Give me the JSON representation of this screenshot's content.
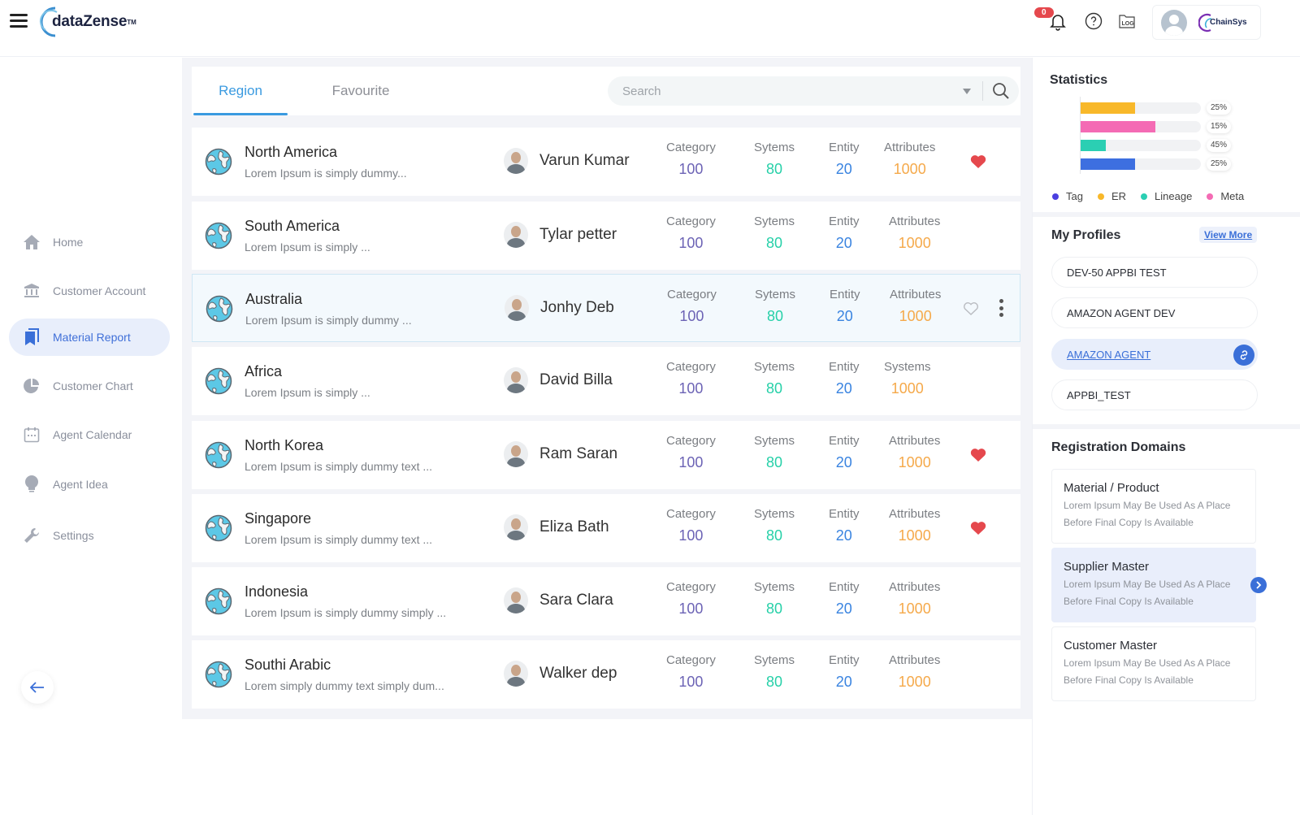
{
  "header": {
    "logo_text": "dataZense",
    "logo_tm": "TM",
    "notification_count": "0",
    "company_logo_text": "ChainSys"
  },
  "sidebar": {
    "items": [
      {
        "label": "Home",
        "icon": "home-icon",
        "active": false
      },
      {
        "label": "Customer Account",
        "icon": "bank-icon",
        "active": false
      },
      {
        "label": "Material Report",
        "icon": "bookmark-report-icon",
        "active": true
      },
      {
        "label": "Customer Chart",
        "icon": "pie-chart-icon",
        "active": false
      },
      {
        "label": "Agent Calendar",
        "icon": "calendar-icon",
        "active": false
      },
      {
        "label": "Agent Idea",
        "icon": "lightbulb-icon",
        "active": false
      },
      {
        "label": "Settings",
        "icon": "wrench-icon",
        "active": false
      }
    ],
    "collapse_icon": "arrow-left-icon"
  },
  "main": {
    "tabs": [
      {
        "label": "Region",
        "active": true
      },
      {
        "label": "Favourite",
        "active": false
      }
    ],
    "search": {
      "placeholder": "Search",
      "value": ""
    },
    "rows": [
      {
        "region": "North America",
        "desc": "Lorem Ipsum is simply  dummy...",
        "person": "Varun Kumar",
        "labels": [
          "Category",
          "Sytems",
          "Entity",
          "Attributes"
        ],
        "values": [
          "100",
          "80",
          "20",
          "1000"
        ],
        "favourite": "filled",
        "selected": false
      },
      {
        "region": "South America",
        "desc": "Lorem Ipsum is simply ...",
        "person": "Tylar petter",
        "labels": [
          "Category",
          "Sytems",
          "Entity",
          "Attributes"
        ],
        "values": [
          "100",
          "80",
          "20",
          "1000"
        ],
        "favourite": "none",
        "selected": false
      },
      {
        "region": "Australia",
        "desc": "Lorem Ipsum is simply dummy ...",
        "person": "Jonhy Deb",
        "labels": [
          "Category",
          "Sytems",
          "Entity",
          "Attributes"
        ],
        "values": [
          "100",
          "80",
          "20",
          "1000"
        ],
        "favourite": "outline",
        "selected": true
      },
      {
        "region": "Africa",
        "desc": "Lorem Ipsum is simply ...",
        "person": "David Billa",
        "labels": [
          "Category",
          "Sytems",
          "Entity",
          "Systems"
        ],
        "values": [
          "100",
          "80",
          "20",
          "1000"
        ],
        "favourite": "none",
        "selected": false
      },
      {
        "region": "North Korea",
        "desc": "Lorem Ipsum is simply dummy text  ...",
        "person": "Ram Saran",
        "labels": [
          "Category",
          "Sytems",
          "Entity",
          "Attributes"
        ],
        "values": [
          "100",
          "80",
          "20",
          "1000"
        ],
        "favourite": "filled",
        "selected": false
      },
      {
        "region": "Singapore",
        "desc": "Lorem Ipsum is simply dummy text ...",
        "person": "Eliza Bath",
        "labels": [
          "Category",
          "Sytems",
          "Entity",
          "Attributes"
        ],
        "values": [
          "100",
          "80",
          "20",
          "1000"
        ],
        "favourite": "filled",
        "selected": false
      },
      {
        "region": "Indonesia",
        "desc": "Lorem Ipsum is simply dummy simply ...",
        "person": "Sara Clara",
        "labels": [
          "Category",
          "Sytems",
          "Entity",
          "Attributes"
        ],
        "values": [
          "100",
          "80",
          "20",
          "1000"
        ],
        "favourite": "none",
        "selected": false
      },
      {
        "region": "Southi Arabic",
        "desc": "Lorem simply dummy text  simply dum...",
        "person": "Walker dep",
        "labels": [
          "Category",
          "Sytems",
          "Entity",
          "Attributes"
        ],
        "values": [
          "100",
          "80",
          "20",
          "1000"
        ],
        "favourite": "none",
        "selected": false
      }
    ]
  },
  "statistics": {
    "title": "Statistics",
    "bars": [
      {
        "label": "25%",
        "fill": 0.45,
        "color": "#f8b82a"
      },
      {
        "label": "15%",
        "fill": 0.62,
        "color": "#f46bb4"
      },
      {
        "label": "45%",
        "fill": 0.21,
        "color": "#2bcfb3"
      },
      {
        "label": "25%",
        "fill": 0.45,
        "color": "#3d6fe0"
      }
    ],
    "legend": [
      {
        "label": "Tag",
        "color": "#4b3fe0"
      },
      {
        "label": "ER",
        "color": "#f8b82a"
      },
      {
        "label": "Lineage",
        "color": "#2bcfb3"
      },
      {
        "label": "Meta",
        "color": "#f46bb4"
      }
    ]
  },
  "profiles": {
    "title": "My Profiles",
    "view_more": "View More",
    "items": [
      {
        "label": "DEV-50 APPBI TEST",
        "active": false
      },
      {
        "label": "AMAZON AGENT DEV",
        "active": false
      },
      {
        "label": "AMAZON AGENT",
        "active": true
      },
      {
        "label": "APPBI_TEST",
        "active": false
      }
    ]
  },
  "domains": {
    "title": "Registration Domains",
    "items": [
      {
        "title": "Material / Product",
        "desc_line1": "Lorem Ipsum May Be Used As A Place",
        "desc_line2": "Before Final Copy Is Available",
        "active": false
      },
      {
        "title": "Supplier Master",
        "desc_line1": "Lorem Ipsum May Be Used As A Place",
        "desc_line2": "Before Final Copy Is Available",
        "active": true
      },
      {
        "title": "Customer Master",
        "desc_line1": "Lorem Ipsum May Be Used As A Place",
        "desc_line2": "Before Final Copy Is Available",
        "active": false
      }
    ]
  },
  "colors": {
    "accent": "#3a6fd8",
    "tab_active": "#3a9ae0",
    "category_value": "#6c63b5",
    "systems_value": "#26d0a8",
    "entity_value": "#3a84e0",
    "attributes_value": "#f5a94a",
    "favourite": "#e5484d"
  }
}
